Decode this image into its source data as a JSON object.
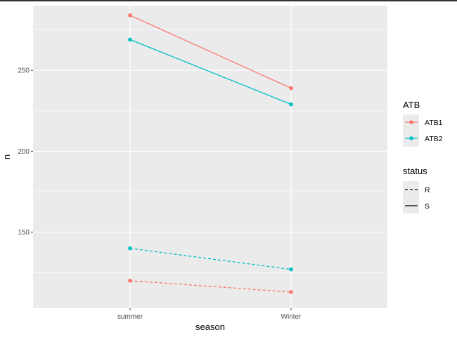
{
  "chart_data": {
    "type": "line",
    "xlabel": "season",
    "ylabel": "n",
    "categories": [
      "summer",
      "Winter"
    ],
    "ylim": [
      103,
      290
    ],
    "yticks": [
      150,
      200,
      250
    ],
    "grid": true,
    "legend_position": "right",
    "series": [
      {
        "ATB": "ATB1",
        "status": "S",
        "values": [
          284,
          239
        ]
      },
      {
        "ATB": "ATB2",
        "status": "S",
        "values": [
          269,
          229
        ]
      },
      {
        "ATB": "ATB2",
        "status": "R",
        "values": [
          140,
          127
        ]
      },
      {
        "ATB": "ATB1",
        "status": "R",
        "values": [
          120,
          113
        ]
      }
    ],
    "legends": [
      {
        "title": "ATB",
        "items": [
          {
            "label": "ATB1",
            "color": "#F8766D"
          },
          {
            "label": "ATB2",
            "color": "#00BFC4"
          }
        ]
      },
      {
        "title": "status",
        "items": [
          {
            "label": "R",
            "linetype": "dashed"
          },
          {
            "label": "S",
            "linetype": "solid"
          }
        ]
      }
    ],
    "colors": {
      "ATB1": "#F8766D",
      "ATB2": "#00BFC4",
      "panel": "#EBEBEB",
      "grid": "#FFFFFF"
    }
  }
}
